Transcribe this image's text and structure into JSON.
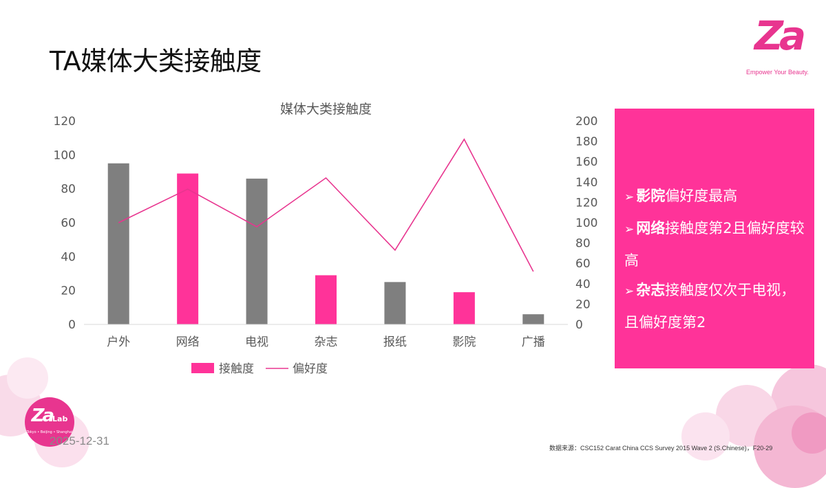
{
  "page": {
    "title": "TA媒体大类接触度",
    "logo": {
      "mark": "Za",
      "slogan": "Empower Your Beauty."
    },
    "badge": {
      "mark": "Za",
      "lab": "Lab",
      "sub": "Tokyo • Beijing • Shanghai"
    },
    "date": "2025-12-31",
    "source": "数据来源：CSC152 Carat China CCS Survey 2015 Wave 2 (S.Chinese)，F20-29",
    "colors": {
      "accent": "#ff3399",
      "gray_bar": "#7f7f7f",
      "line": "#e8358f"
    }
  },
  "chart_data": {
    "type": "bar",
    "title": "媒体大类接触度",
    "categories": [
      "户外",
      "网络",
      "电视",
      "杂志",
      "报纸",
      "影院",
      "广播"
    ],
    "series": [
      {
        "name": "接触度",
        "type": "bar",
        "axis": "left",
        "values": [
          95,
          89,
          86,
          29,
          25,
          19,
          6
        ],
        "bar_colors": [
          "#7f7f7f",
          "#ff3399",
          "#7f7f7f",
          "#ff3399",
          "#7f7f7f",
          "#ff3399",
          "#7f7f7f"
        ]
      },
      {
        "name": "偏好度",
        "type": "line",
        "axis": "right",
        "values": [
          100,
          133,
          96,
          144,
          73,
          182,
          52
        ]
      }
    ],
    "y_left": {
      "min": 0,
      "max": 120,
      "ticks": [
        "0",
        "20",
        "40",
        "60",
        "80",
        "100",
        "120"
      ]
    },
    "y_right": {
      "min": 0,
      "max": 200,
      "ticks": [
        "0",
        "20",
        "40",
        "60",
        "80",
        "100",
        "120",
        "140",
        "160",
        "180",
        "200"
      ]
    },
    "grid": false,
    "legend_position": "bottom"
  },
  "panel": {
    "items": [
      {
        "bold": "影院",
        "text": "偏好度最高"
      },
      {
        "bold": "网络",
        "text": "接触度第2且偏好度较高"
      },
      {
        "bold": "杂志",
        "text": "接触度仅次于电视，且偏好度第2"
      }
    ]
  }
}
